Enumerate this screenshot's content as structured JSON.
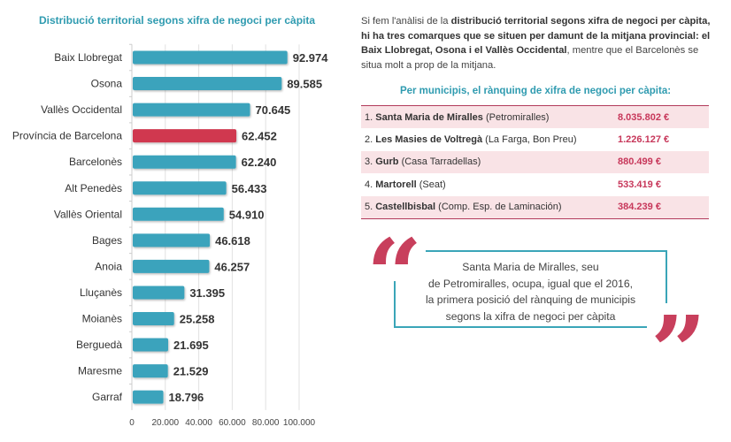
{
  "chart_data": {
    "type": "bar",
    "orientation": "horizontal",
    "title": "Distribució territorial segons xifra de negoci per càpita",
    "xlabel": "",
    "ylabel": "",
    "xlim": [
      0,
      100000
    ],
    "grid": true,
    "categories": [
      "Baix Llobregat",
      "Osona",
      "Vallès Occidental",
      "Província de Barcelona",
      "Barcelonès",
      "Alt Penedès",
      "Vallès Oriental",
      "Bages",
      "Anoia",
      "Lluçanès",
      "Moianès",
      "Berguedà",
      "Maresme",
      "Garraf"
    ],
    "values": [
      92974,
      89585,
      70645,
      62452,
      62240,
      56433,
      54910,
      46618,
      46257,
      31395,
      25258,
      21695,
      21529,
      18796
    ],
    "value_labels": [
      "92.974",
      "89.585",
      "70.645",
      "62.452",
      "62.240",
      "56.433",
      "54.910",
      "46.618",
      "46.257",
      "31.395",
      "25.258",
      "21.695",
      "21.529",
      "18.796"
    ],
    "highlight_category": "Província de Barcelona",
    "ticks": [
      0,
      20000,
      40000,
      60000,
      80000,
      100000
    ],
    "tick_labels": [
      "0",
      "20.000",
      "40.000",
      "60.000",
      "80.000",
      "100.000"
    ],
    "colors": {
      "default": "#3aa3bc",
      "highlight": "#d0384f"
    }
  },
  "intro": {
    "parts": [
      {
        "text": "Si fem l'anàlisi de la ",
        "bold": false
      },
      {
        "text": "distribució territorial segons xifra de negoci per càpita, hi ha tres comarques que se situen per damunt de la mitjana provincial: el Baix Llobregat, Osona i el Vallès Occidental",
        "bold": true
      },
      {
        "text": ", mentre que el Barcelonès se situa molt a prop de la mitjana.",
        "bold": false
      }
    ]
  },
  "ranking": {
    "title": "Per municipis, el rànquing de xifra de negoci per càpita:",
    "rows": [
      {
        "rank": "1.",
        "name": "Santa Maria de Miralles",
        "note": " (Petromiralles)",
        "value": "8.035.802 €"
      },
      {
        "rank": "2.",
        "name": "Les Masies de Voltregà",
        "note": " (La Farga, Bon Preu)",
        "value": "1.226.127 €"
      },
      {
        "rank": "3.",
        "name": "Gurb",
        "note": " (Casa Tarradellas)",
        "value": "880.499 €"
      },
      {
        "rank": "4.",
        "name": "Martorell",
        "note": " (Seat)",
        "value": "533.419 €"
      },
      {
        "rank": "5.",
        "name": "Castellbisbal",
        "note": " (Comp. Esp. de Laminación)",
        "value": "384.239 €"
      }
    ]
  },
  "quote": {
    "open_mark": "“",
    "close_mark": "”",
    "lines": [
      "Santa Maria de Miralles, seu",
      "de Petromiralles, ocupa, igual que el 2016,",
      "la primera posició del rànquing de municipis",
      "segons la xifra de negoci per càpita"
    ]
  }
}
